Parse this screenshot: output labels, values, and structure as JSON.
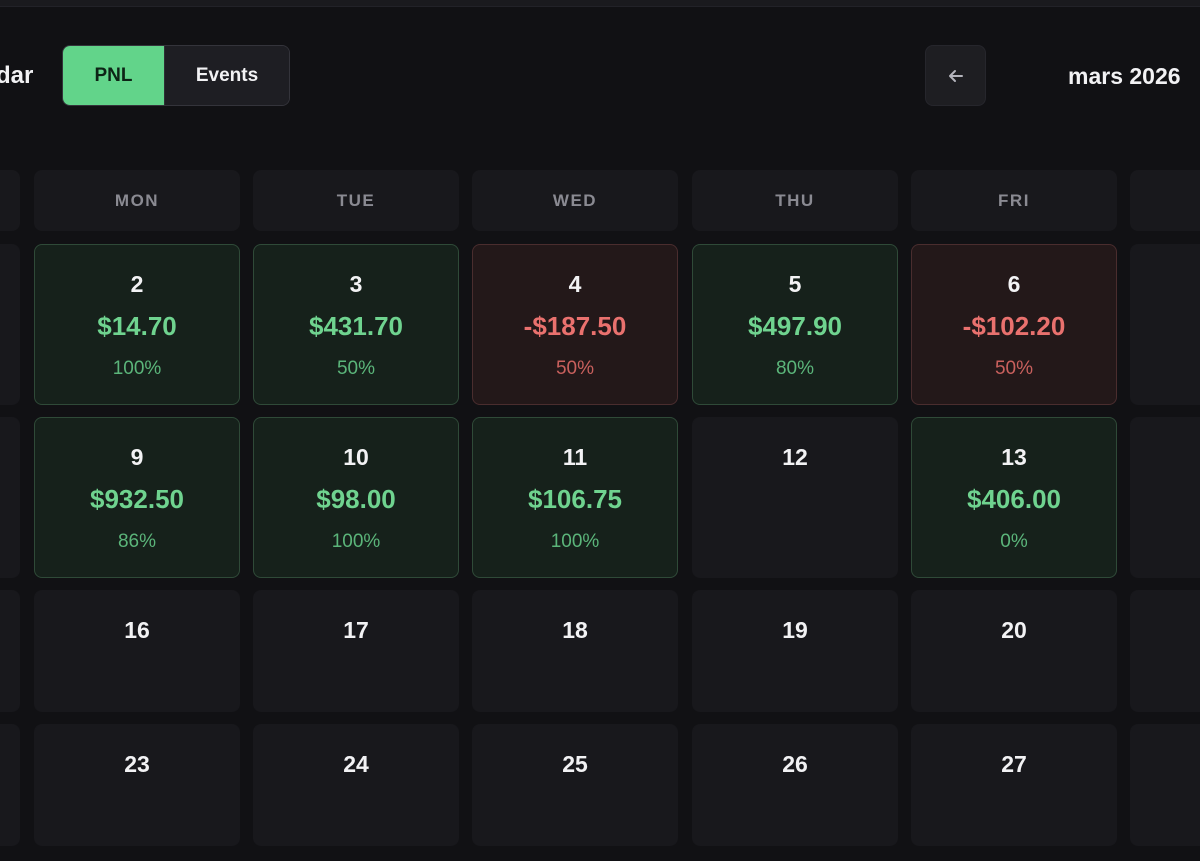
{
  "header": {
    "title": "dar",
    "view_toggle": {
      "pnl_label": "PNL",
      "events_label": "Events",
      "active": "PNL"
    },
    "prev_icon": "arrow-left-icon",
    "month_label": "mars 2026"
  },
  "weekdays": [
    "MON",
    "TUE",
    "WED",
    "THU",
    "FRI"
  ],
  "weeks": [
    [
      {
        "day": "2",
        "pnl": "$14.70",
        "pct": "100%",
        "status": "pos"
      },
      {
        "day": "3",
        "pnl": "$431.70",
        "pct": "50%",
        "status": "pos"
      },
      {
        "day": "4",
        "pnl": "-$187.50",
        "pct": "50%",
        "status": "neg"
      },
      {
        "day": "5",
        "pnl": "$497.90",
        "pct": "80%",
        "status": "pos"
      },
      {
        "day": "6",
        "pnl": "-$102.20",
        "pct": "50%",
        "status": "neg"
      }
    ],
    [
      {
        "day": "9",
        "pnl": "$932.50",
        "pct": "86%",
        "status": "pos"
      },
      {
        "day": "10",
        "pnl": "$98.00",
        "pct": "100%",
        "status": "pos"
      },
      {
        "day": "11",
        "pnl": "$106.75",
        "pct": "100%",
        "status": "pos"
      },
      {
        "day": "12",
        "status": "none"
      },
      {
        "day": "13",
        "pnl": "$406.00",
        "pct": "0%",
        "status": "pos"
      }
    ],
    [
      {
        "day": "16",
        "status": "none"
      },
      {
        "day": "17",
        "status": "none"
      },
      {
        "day": "18",
        "status": "none"
      },
      {
        "day": "19",
        "status": "none"
      },
      {
        "day": "20",
        "status": "none"
      }
    ],
    [
      {
        "day": "23",
        "status": "none"
      },
      {
        "day": "24",
        "status": "none"
      },
      {
        "day": "25",
        "status": "none"
      },
      {
        "day": "26",
        "status": "none"
      },
      {
        "day": "27",
        "status": "none"
      }
    ]
  ],
  "colors": {
    "positive": "#6fd38f",
    "negative": "#e9716e",
    "accent": "#62d48a",
    "background": "#111114"
  }
}
